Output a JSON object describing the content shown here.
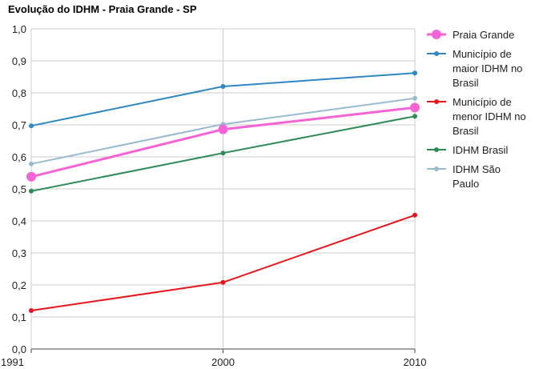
{
  "chart_data": {
    "type": "line",
    "title": "Evolução do IDHM - Praia Grande - SP",
    "x": [
      "1991",
      "2000",
      "2010"
    ],
    "ylim": [
      0,
      1
    ],
    "yticks": [
      "0,0",
      "0,1",
      "0,2",
      "0,3",
      "0,4",
      "0,5",
      "0,6",
      "0,7",
      "0,8",
      "0,9",
      "1,0"
    ],
    "grid": true,
    "legend_position": "right",
    "series": [
      {
        "name": "Praia Grande",
        "values": [
          0.538,
          0.686,
          0.754
        ],
        "color": "#f564d4",
        "emphasis": true,
        "legend_lines": [
          "Praia Grande"
        ]
      },
      {
        "name": "Município de maior IDHM no Brasil",
        "values": [
          0.697,
          0.82,
          0.862
        ],
        "color": "#2f88c0",
        "legend_lines": [
          "Município de",
          "maior IDHM no",
          "Brasil"
        ]
      },
      {
        "name": "Município de menor IDHM no Brasil",
        "values": [
          0.12,
          0.208,
          0.418
        ],
        "color": "#e8161c",
        "legend_lines": [
          "Município de",
          "menor IDHM no",
          "Brasil"
        ]
      },
      {
        "name": "IDHM Brasil",
        "values": [
          0.493,
          0.612,
          0.727
        ],
        "color": "#2e8b57",
        "legend_lines": [
          "IDHM Brasil"
        ]
      },
      {
        "name": "IDHM São Paulo",
        "values": [
          0.578,
          0.702,
          0.783
        ],
        "color": "#99bbcf",
        "legend_lines": [
          "IDHM São",
          "Paulo"
        ]
      }
    ]
  }
}
